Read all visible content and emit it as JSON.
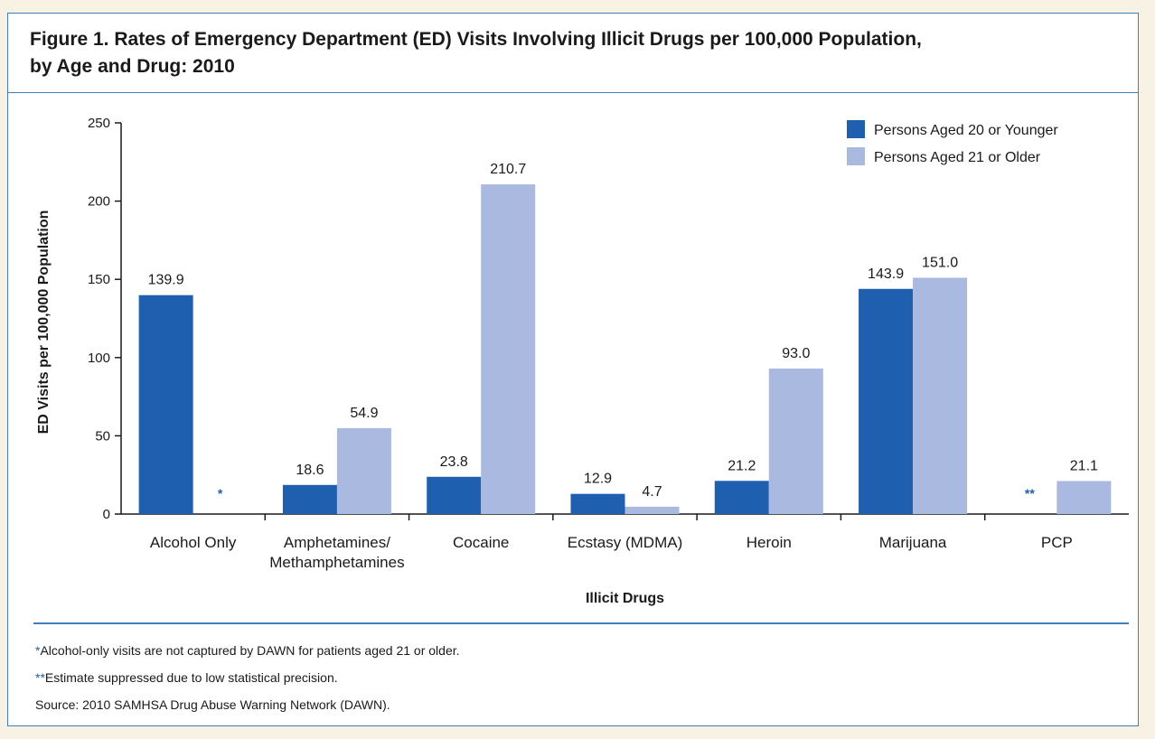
{
  "figure": {
    "title_line1": "Figure 1. Rates of Emergency Department (ED) Visits Involving Illicit Drugs per 100,000 Population,",
    "title_line2": "by Age and Drug: 2010"
  },
  "chart_data": {
    "type": "bar",
    "title": "Figure 1. Rates of Emergency Department (ED) Visits Involving Illicit Drugs per 100,000 Population, by Age and Drug: 2010",
    "xlabel": "Illicit Drugs",
    "ylabel": "ED Visits per 100,000 Population",
    "ylim": [
      0,
      250
    ],
    "yticks": [
      0,
      50,
      100,
      150,
      200,
      250
    ],
    "grid": false,
    "legend_position": "top-right",
    "categories": [
      [
        "Alcohol Only"
      ],
      [
        "Amphetamines/",
        "Methamphetamines"
      ],
      [
        "Cocaine"
      ],
      [
        "Ecstasy (MDMA)"
      ],
      [
        "Heroin"
      ],
      [
        "Marijuana"
      ],
      [
        "PCP"
      ]
    ],
    "series": [
      {
        "name": "Persons Aged 20 or Younger",
        "color": "#1f5fb0",
        "values": [
          139.9,
          18.6,
          23.8,
          12.9,
          21.2,
          143.9,
          null
        ],
        "labels": [
          "139.9",
          "18.6",
          "23.8",
          "12.9",
          "21.2",
          "143.9",
          "**"
        ]
      },
      {
        "name": "Persons Aged 21 or Older",
        "color": "#aab9e0",
        "values": [
          null,
          54.9,
          210.7,
          4.7,
          93.0,
          151.0,
          21.1
        ],
        "labels": [
          "*",
          "54.9",
          "210.7",
          "4.7",
          "93.0",
          "151.0",
          "21.1"
        ]
      }
    ]
  },
  "notes": {
    "note1_mark": "*",
    "note1_text": "Alcohol-only visits are not captured by DAWN for patients aged 21 or older.",
    "note2_mark": "**",
    "note2_text": "Estimate suppressed due to low statistical precision.",
    "source": "Source: 2010 SAMHSA Drug Abuse Warning Network (DAWN)."
  }
}
